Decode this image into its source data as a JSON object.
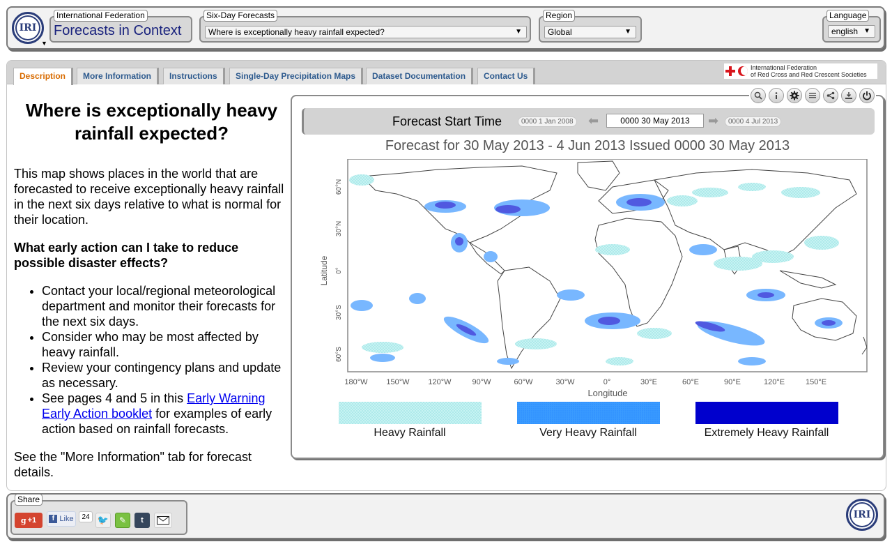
{
  "header": {
    "logo_text": "IRI",
    "federation_legend": "International Federation",
    "app_title": "Forecasts in Context",
    "six_day_legend": "Six-Day Forecasts",
    "six_day_selected": "Where is exceptionally heavy rainfall expected?",
    "region_legend": "Region",
    "region_selected": "Global",
    "language_legend": "Language",
    "language_selected": "english"
  },
  "tabs": [
    {
      "label": "Description"
    },
    {
      "label": "More Information"
    },
    {
      "label": "Instructions"
    },
    {
      "label": "Single-Day Precipitation Maps"
    },
    {
      "label": "Dataset Documentation"
    },
    {
      "label": "Contact Us"
    }
  ],
  "partner": {
    "line1": "International Federation",
    "line2": "of Red Cross and Red Crescent Societies"
  },
  "description": {
    "title": "Where is exceptionally heavy rainfall expected?",
    "intro": "This map shows places in the world that are forecasted to receive exceptionally heavy rainfall in the next six days relative to what is normal for their location.",
    "question": "What early action can I take to reduce possible disaster effects?",
    "bullets": [
      "Contact your local/regional meteorological department and monitor their forecasts for the next six days.",
      "Consider who may be most affected by heavy rainfall.",
      "Review your contingency plans and update as necessary."
    ],
    "bullet4_pre": "See pages 4 and 5 in this ",
    "bullet4_link": "Early Warning Early Action booklet",
    "bullet4_post": " for examples of early action based on rainfall forecasts.",
    "footer_note": "See the \"More Information\" tab for forecast details."
  },
  "map": {
    "toolbar_icons": [
      "search-icon",
      "info-icon",
      "gear-icon",
      "list-icon",
      "share-icon",
      "download-icon",
      "power-icon"
    ],
    "time_label": "Forecast Start Time",
    "time_first": "0000 1 Jan 2008",
    "time_current": "0000 30 May 2013",
    "time_last": "0000 4 Jul 2013",
    "title": "Forecast for 30 May 2013 - 4 Jun 2013 Issued 0000 30 May 2013",
    "ylabel": "Latitude",
    "xlabel": "Longitude",
    "lat_ticks": [
      "60°N",
      "30°N",
      "0°",
      "30°S",
      "60°S"
    ],
    "lon_ticks": [
      "180°W",
      "150°W",
      "120°W",
      "90°W",
      "60°W",
      "30°W",
      "0°",
      "30°E",
      "60°E",
      "90°E",
      "120°E",
      "150°E"
    ],
    "legend": [
      {
        "label": "Heavy Rainfall",
        "color": "#a6e8ea"
      },
      {
        "label": "Very Heavy Rainfall",
        "color": "#1e90ff"
      },
      {
        "label": "Extremely Heavy Rainfall",
        "color": "#0000cd"
      }
    ]
  },
  "footer": {
    "share_legend": "Share",
    "gplus_label": "+1",
    "fb_label": "Like",
    "fb_count": "24",
    "logo_text": "IRI"
  }
}
